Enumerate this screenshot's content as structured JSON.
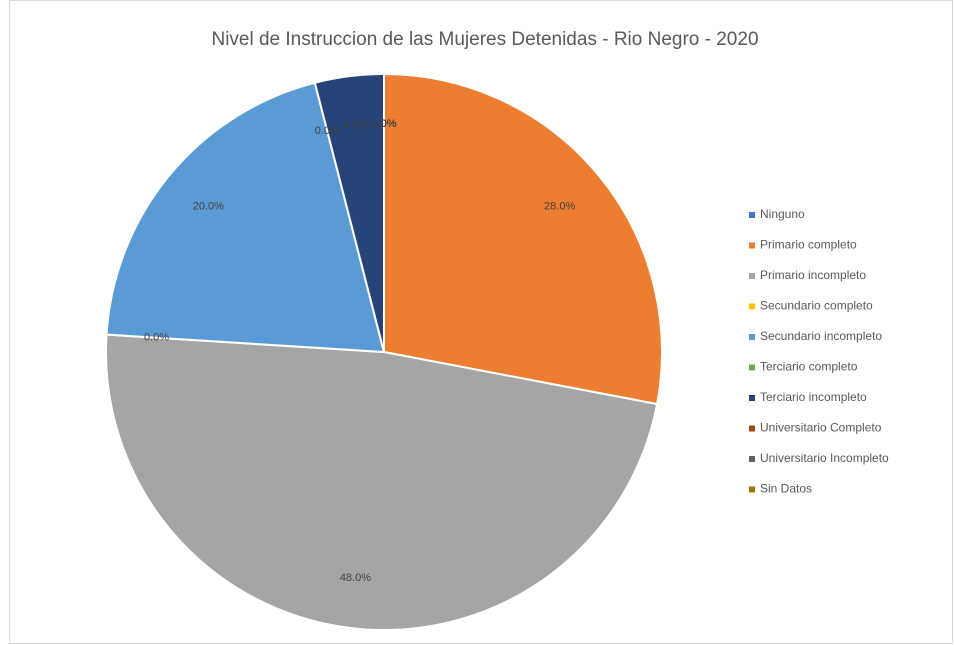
{
  "chart_data": {
    "type": "pie",
    "title": "Nivel de Instruccion de las Mujeres Detenidas - Rio Negro - 2020",
    "categories": [
      "Ninguno",
      "Primario completo",
      "Primario incompleto",
      "Secundario completo",
      "Secundario incompleto",
      "Terciario completo",
      "Terciario incompleto",
      "Universitario Completo",
      "Universitario Incompleto",
      "Sin Datos"
    ],
    "values": [
      0,
      28,
      48,
      0,
      20,
      0,
      4,
      0,
      0,
      0
    ],
    "value_labels": [
      "0.0%",
      "28.0%",
      "48.0%",
      "0.0%",
      "20.0%",
      "0.0%",
      "4.0%",
      "0.0%",
      "0.0%",
      "0.0%"
    ],
    "colors": [
      "#4472c4",
      "#ed7d31",
      "#a5a5a5",
      "#ffc000",
      "#5b9bd5",
      "#70ad47",
      "#264478",
      "#9e480e",
      "#636363",
      "#997300"
    ],
    "legend": "right"
  }
}
